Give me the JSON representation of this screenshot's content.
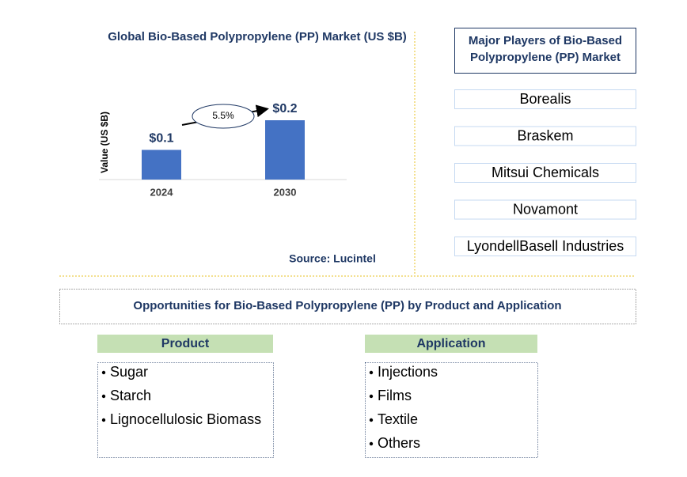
{
  "chart_data": {
    "type": "bar",
    "title": "Global Bio-Based Polypropylene (PP) Market (US $B)",
    "y_label": "Value (US $B)",
    "categories": [
      "2024",
      "2030"
    ],
    "values": [
      0.1,
      0.2
    ],
    "value_labels": [
      "$0.1",
      "$0.2"
    ],
    "color": "#4472c4",
    "annotation": "5.5%",
    "source": "Source: Lucintel"
  },
  "players": {
    "title": "Major Players of Bio-Based Polypropylene (PP) Market",
    "items": [
      "Borealis",
      "Braskem",
      "Mitsui Chemicals",
      "Novamont",
      "LyondellBasell Industries"
    ]
  },
  "opportunities": {
    "title": "Opportunities for Bio-Based Polypropylene (PP) by Product and Application",
    "product": {
      "header": "Product",
      "items": [
        "Sugar",
        "Starch",
        "Lignocellulosic Biomass"
      ]
    },
    "application": {
      "header": "Application",
      "items": [
        "Injections",
        "Films",
        "Textile",
        "Others"
      ]
    }
  }
}
